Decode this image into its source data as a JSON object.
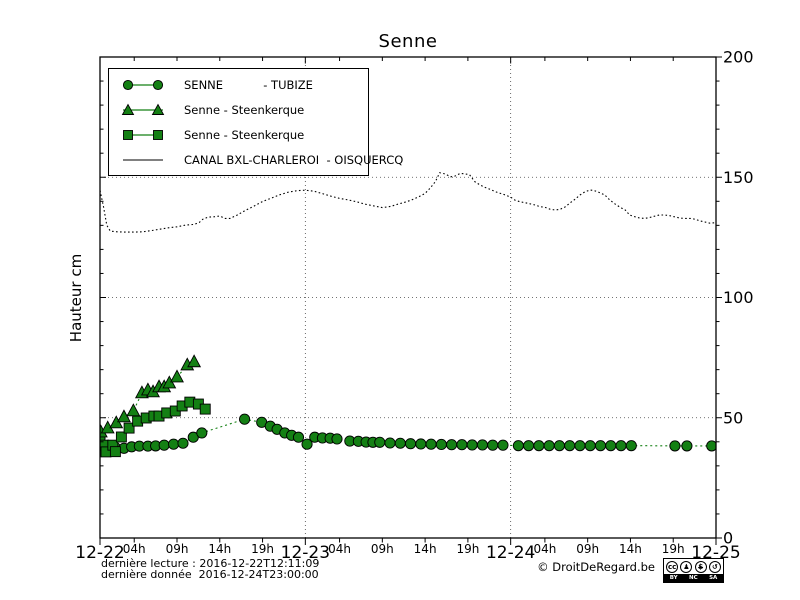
{
  "colors": {
    "series_green": "#148014",
    "canal_black": "#000000",
    "grid": "#444444"
  },
  "chart_data": {
    "type": "line",
    "title": "Senne",
    "ylabel": "Hauteur cm",
    "x_unit": "hours since 2016-12-22 00:00",
    "xlim_hours": [
      0,
      72
    ],
    "ylim": [
      0,
      200
    ],
    "y_major_ticks": [
      0,
      50,
      100,
      150,
      200
    ],
    "y_minor_step": 10,
    "x_day_labels": [
      "12-22",
      "12-23",
      "12-24",
      "12-25"
    ],
    "x_hour_tick_labels": [
      "04h",
      "09h",
      "14h",
      "19h"
    ],
    "x_hour_tick_positions": [
      4,
      9,
      14,
      19
    ],
    "grid": {
      "horizontal_at": [
        50,
        100,
        150
      ],
      "vertical_at_hours": [
        24,
        48
      ],
      "style": "dotted"
    },
    "legend_position": "upper left",
    "series": [
      {
        "name": "SENNE - TUBIZE",
        "marker": "circle",
        "line": "dotted",
        "color": "#148014",
        "points": [
          [
            0,
            41.5
          ],
          [
            0.6,
            37.5
          ],
          [
            1.8,
            37.6
          ],
          [
            2.8,
            37.3
          ],
          [
            3.7,
            37.9
          ],
          [
            4.6,
            38.2
          ],
          [
            5.6,
            38.2
          ],
          [
            6.5,
            38.3
          ],
          [
            7.5,
            38.6
          ],
          [
            8.6,
            39.0
          ],
          [
            9.7,
            39.4
          ],
          [
            10.9,
            41.9
          ],
          [
            11.9,
            43.7
          ],
          [
            16.9,
            49.4
          ],
          [
            18.9,
            48.1
          ],
          [
            19.9,
            46.5
          ],
          [
            20.7,
            45.2
          ],
          [
            21.6,
            43.7
          ],
          [
            22.4,
            42.7
          ],
          [
            23.2,
            41.9
          ],
          [
            24.2,
            39.0
          ],
          [
            25.1,
            41.9
          ],
          [
            26.0,
            41.6
          ],
          [
            26.9,
            41.5
          ],
          [
            27.7,
            41.2
          ],
          [
            29.2,
            40.3
          ],
          [
            30.2,
            40.2
          ],
          [
            31.1,
            39.9
          ],
          [
            31.9,
            39.8
          ],
          [
            32.7,
            39.8
          ],
          [
            33.9,
            39.5
          ],
          [
            35.1,
            39.4
          ],
          [
            36.3,
            39.2
          ],
          [
            37.5,
            39.1
          ],
          [
            38.7,
            39.0
          ],
          [
            39.9,
            38.9
          ],
          [
            41.1,
            38.8
          ],
          [
            42.3,
            38.8
          ],
          [
            43.5,
            38.7
          ],
          [
            44.7,
            38.7
          ],
          [
            45.9,
            38.6
          ],
          [
            47.1,
            38.6
          ],
          [
            48.9,
            38.4
          ],
          [
            50.1,
            38.4
          ],
          [
            51.3,
            38.4
          ],
          [
            52.5,
            38.4
          ],
          [
            53.7,
            38.4
          ],
          [
            54.9,
            38.4
          ],
          [
            56.1,
            38.4
          ],
          [
            57.3,
            38.4
          ],
          [
            58.5,
            38.4
          ],
          [
            59.7,
            38.4
          ],
          [
            60.9,
            38.4
          ],
          [
            62.1,
            38.4
          ],
          [
            67.2,
            38.3
          ],
          [
            68.6,
            38.3
          ],
          [
            71.5,
            38.3
          ]
        ]
      },
      {
        "name": "Senne - Steenkerque",
        "marker": "triangle",
        "line": "dotted",
        "color": "#148014",
        "points": [
          [
            0.1,
            44.0
          ],
          [
            0.9,
            45.7
          ],
          [
            1.9,
            47.8
          ],
          [
            2.8,
            50.3
          ],
          [
            3.9,
            52.8
          ],
          [
            4.9,
            60.3
          ],
          [
            5.6,
            61.5
          ],
          [
            6.2,
            60.7
          ],
          [
            6.9,
            62.8
          ],
          [
            7.5,
            62.8
          ],
          [
            8.1,
            64.4
          ],
          [
            9.0,
            66.9
          ],
          [
            10.2,
            71.9
          ],
          [
            11.0,
            73.2
          ]
        ]
      },
      {
        "name": "Senne - Steenkerque",
        "marker": "square",
        "line": "dotted",
        "color": "#148014",
        "points": [
          [
            0.4,
            38.6
          ],
          [
            0.7,
            35.8
          ],
          [
            1.5,
            38.6
          ],
          [
            1.8,
            35.9
          ],
          [
            2.5,
            42.0
          ],
          [
            3.4,
            45.7
          ],
          [
            4.4,
            48.6
          ],
          [
            5.4,
            49.9
          ],
          [
            6.3,
            50.7
          ],
          [
            6.9,
            50.7
          ],
          [
            7.8,
            52.0
          ],
          [
            8.8,
            52.8
          ],
          [
            9.6,
            54.9
          ],
          [
            10.5,
            56.5
          ],
          [
            11.5,
            55.7
          ],
          [
            12.3,
            53.6
          ]
        ]
      },
      {
        "name": "CANAL BXL-CHARLEROI - OISQUERCQ",
        "marker": "none",
        "line": "dotted",
        "color": "#000000",
        "points": [
          [
            0,
            144.5
          ],
          [
            0.4,
            138.0
          ],
          [
            0.8,
            130.0
          ],
          [
            1.2,
            127.6
          ],
          [
            2,
            127.3
          ],
          [
            3,
            127.2
          ],
          [
            4,
            127.2
          ],
          [
            5,
            127.3
          ],
          [
            6,
            127.8
          ],
          [
            7,
            128.4
          ],
          [
            8,
            129.0
          ],
          [
            9,
            129.4
          ],
          [
            10,
            130.1
          ],
          [
            11,
            130.4
          ],
          [
            11.6,
            131.2
          ],
          [
            12,
            132.5
          ],
          [
            12.6,
            133.4
          ],
          [
            13.4,
            133.6
          ],
          [
            14,
            133.9
          ],
          [
            14.6,
            132.9
          ],
          [
            15.2,
            132.9
          ],
          [
            16,
            134.2
          ],
          [
            17,
            136.2
          ],
          [
            18,
            138.0
          ],
          [
            19,
            139.9
          ],
          [
            20,
            141.3
          ],
          [
            21,
            142.7
          ],
          [
            22,
            143.8
          ],
          [
            23,
            144.4
          ],
          [
            24,
            144.6
          ],
          [
            25,
            144.2
          ],
          [
            26,
            143.2
          ],
          [
            27,
            142.1
          ],
          [
            28,
            141.2
          ],
          [
            29,
            140.6
          ],
          [
            30,
            139.8
          ],
          [
            31,
            138.8
          ],
          [
            32,
            138.1
          ],
          [
            33,
            137.4
          ],
          [
            34,
            137.9
          ],
          [
            34.8,
            138.8
          ],
          [
            35.6,
            139.6
          ],
          [
            36.4,
            140.5
          ],
          [
            37.2,
            141.8
          ],
          [
            38,
            143.3
          ],
          [
            38.6,
            145.5
          ],
          [
            39.2,
            148.2
          ],
          [
            39.7,
            151.9
          ],
          [
            40.3,
            151.4
          ],
          [
            41,
            150.2
          ],
          [
            41.5,
            150.5
          ],
          [
            42.1,
            151.6
          ],
          [
            42.7,
            151.4
          ],
          [
            43.2,
            151.0
          ],
          [
            43.8,
            148.2
          ],
          [
            44.4,
            146.8
          ],
          [
            45,
            145.8
          ],
          [
            45.6,
            145.0
          ],
          [
            46.2,
            144.0
          ],
          [
            46.8,
            143.3
          ],
          [
            47.4,
            142.6
          ],
          [
            48,
            141.7
          ],
          [
            48.5,
            140.5
          ],
          [
            49.1,
            139.8
          ],
          [
            49.7,
            139.4
          ],
          [
            50.3,
            138.9
          ],
          [
            50.8,
            138.5
          ],
          [
            51.4,
            137.8
          ],
          [
            52,
            137.5
          ],
          [
            52.6,
            136.7
          ],
          [
            53.2,
            136.4
          ],
          [
            53.8,
            136.7
          ],
          [
            54.3,
            137.5
          ],
          [
            54.9,
            139.2
          ],
          [
            55.5,
            140.8
          ],
          [
            56.1,
            142.6
          ],
          [
            56.7,
            144.0
          ],
          [
            57.3,
            144.7
          ],
          [
            57.8,
            144.4
          ],
          [
            58.4,
            143.6
          ],
          [
            59,
            142.6
          ],
          [
            59.6,
            140.5
          ],
          [
            60.2,
            138.9
          ],
          [
            60.8,
            137.5
          ],
          [
            61.4,
            136.4
          ],
          [
            61.9,
            134.3
          ],
          [
            62.5,
            133.6
          ],
          [
            63.1,
            133.0
          ],
          [
            63.7,
            132.9
          ],
          [
            64.3,
            133.3
          ],
          [
            64.9,
            133.9
          ],
          [
            65.4,
            134.3
          ],
          [
            66,
            134.3
          ],
          [
            66.6,
            134.0
          ],
          [
            67.2,
            133.5
          ],
          [
            67.8,
            133.0
          ],
          [
            68.4,
            132.9
          ],
          [
            69,
            132.9
          ],
          [
            69.6,
            132.5
          ],
          [
            70.1,
            131.9
          ],
          [
            70.7,
            131.4
          ],
          [
            71.3,
            130.9
          ],
          [
            71.9,
            131.1
          ]
        ]
      }
    ]
  },
  "legend": {
    "entries": [
      {
        "label": "SENNE           - TUBIZE",
        "marker": "circle"
      },
      {
        "label": "Senne - Steenkerque",
        "marker": "triangle"
      },
      {
        "label": "Senne - Steenkerque",
        "marker": "square"
      },
      {
        "label": "CANAL BXL-CHARLEROI  - OISQUERCQ",
        "marker": "line"
      }
    ]
  },
  "footer": {
    "line1": "dernière lecture : 2016-12-22T12:11:09",
    "line2": "dernière donnée  2016-12-24T23:00:00",
    "copyright": "© DroitDeRegard.be",
    "cc_icons": {
      "cc": "cc",
      "by": "♟",
      "nc": "$",
      "sa": "↺"
    },
    "cc_labels": {
      "by": "BY",
      "nc": "NC",
      "sa": "SA"
    }
  }
}
